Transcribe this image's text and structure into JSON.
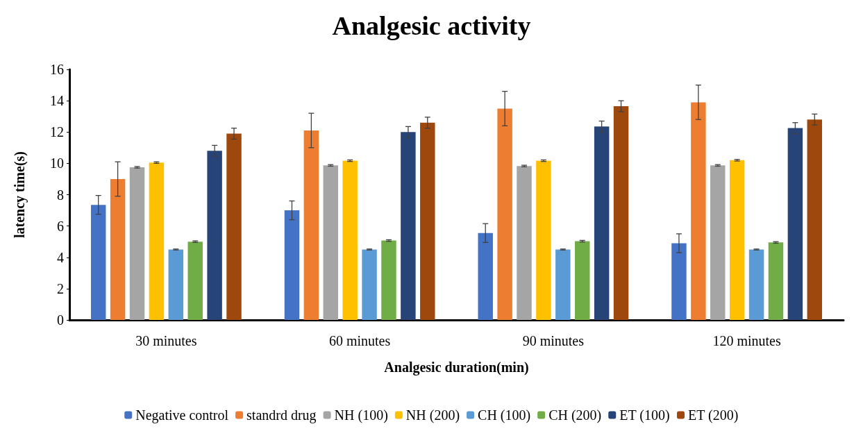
{
  "chart_data": {
    "type": "bar",
    "title": "Analgesic activity",
    "xlabel": "Analgesic duration(min)",
    "ylabel": "latency time(s)",
    "categories": [
      "30 minutes",
      "60 minutes",
      "90 minutes",
      "120 minutes"
    ],
    "ylim": [
      0,
      16
    ],
    "yticks": [
      0,
      2,
      4,
      6,
      8,
      10,
      12,
      14,
      16
    ],
    "grid": false,
    "legend": "bottom",
    "series": [
      {
        "name": "Negative control",
        "color": "#4472c4",
        "values": [
          7.35,
          7.0,
          5.55,
          4.9
        ],
        "errors": [
          0.6,
          0.6,
          0.6,
          0.6
        ]
      },
      {
        "name": "standrd drug",
        "color": "#ed7d31",
        "values": [
          9.0,
          12.1,
          13.5,
          13.9
        ],
        "errors": [
          1.1,
          1.1,
          1.1,
          1.1
        ]
      },
      {
        "name": "NH (100)",
        "color": "#a5a5a5",
        "values": [
          9.75,
          9.87,
          9.83,
          9.87
        ],
        "errors": [
          0.05,
          0.05,
          0.05,
          0.05
        ]
      },
      {
        "name": "NH (200)",
        "color": "#ffc000",
        "values": [
          10.05,
          10.17,
          10.17,
          10.2
        ],
        "errors": [
          0.05,
          0.05,
          0.05,
          0.05
        ]
      },
      {
        "name": "CH (100)",
        "color": "#5b9bd5",
        "values": [
          4.5,
          4.5,
          4.5,
          4.5
        ],
        "errors": [
          0.03,
          0.03,
          0.03,
          0.03
        ]
      },
      {
        "name": "CH (200)",
        "color": "#70ad47",
        "values": [
          5.0,
          5.07,
          5.03,
          4.95
        ],
        "errors": [
          0.05,
          0.05,
          0.05,
          0.05
        ]
      },
      {
        "name": "ET (100)",
        "color": "#264478",
        "values": [
          10.8,
          12.0,
          12.35,
          12.25
        ],
        "errors": [
          0.35,
          0.35,
          0.35,
          0.35
        ]
      },
      {
        "name": "ET (200)",
        "color": "#9e480e",
        "values": [
          11.9,
          12.6,
          13.65,
          12.8
        ],
        "errors": [
          0.35,
          0.35,
          0.35,
          0.35
        ]
      }
    ]
  }
}
